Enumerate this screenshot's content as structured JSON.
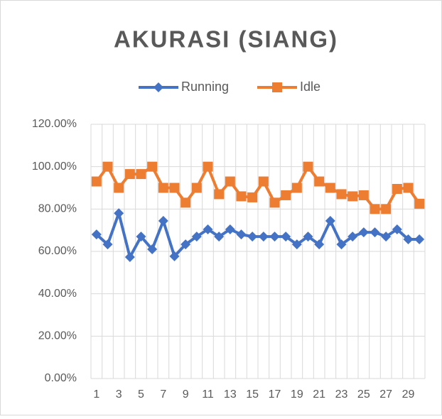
{
  "chart_data": {
    "type": "line",
    "title": "AKURASI (SIANG)",
    "categories": [
      "1",
      null,
      "3",
      null,
      "5",
      null,
      "7",
      null,
      "9",
      null,
      "11",
      null,
      "13",
      null,
      "15",
      null,
      "17",
      null,
      "19",
      null,
      "21",
      null,
      "23",
      null,
      "25",
      null,
      "27",
      null,
      "29",
      null
    ],
    "series": [
      {
        "name": "Running",
        "color": "#4472c4",
        "marker": "diamond",
        "values": [
          68,
          63.3,
          78,
          57.3,
          67,
          61,
          74.4,
          57.7,
          63.3,
          67,
          70.4,
          67,
          70.4,
          68,
          67,
          67,
          67,
          67,
          63.3,
          67,
          63.3,
          74.4,
          63.3,
          67,
          69,
          69,
          67,
          70.4,
          65.7,
          65.7
        ]
      },
      {
        "name": "Idle",
        "color": "#ed7d31",
        "marker": "square",
        "values": [
          93,
          100,
          90,
          96.5,
          96.5,
          100,
          90,
          90,
          83,
          90,
          100,
          87,
          93,
          86,
          85.5,
          93,
          83,
          86.5,
          90,
          100,
          93,
          90,
          87,
          86,
          86.5,
          80,
          80,
          89.5,
          90,
          82.5
        ]
      }
    ],
    "ylim": [
      0,
      120
    ],
    "yticks": [
      {
        "value": 0,
        "label": "0.00%"
      },
      {
        "value": 20,
        "label": "20.00%"
      },
      {
        "value": 40,
        "label": "40.00%"
      },
      {
        "value": 60,
        "label": "60.00%"
      },
      {
        "value": 80,
        "label": "80.00%"
      },
      {
        "value": 100,
        "label": "100.00%"
      },
      {
        "value": 120,
        "label": "120.00%"
      }
    ],
    "grid": true,
    "legend": "top"
  }
}
